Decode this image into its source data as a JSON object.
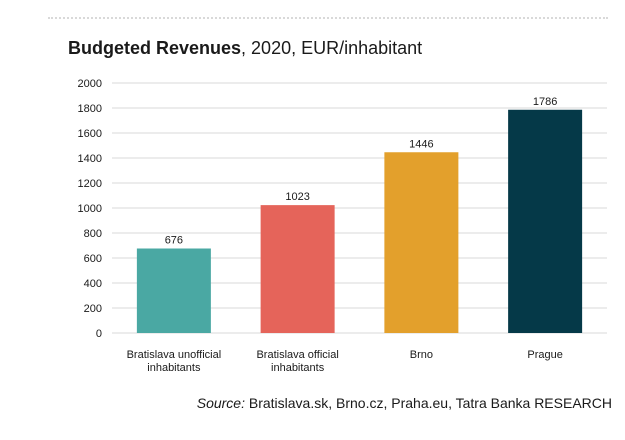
{
  "header": {
    "title_bold": "Budgeted Revenues",
    "title_rest": ", 2020, EUR/inhabitant"
  },
  "footer": {
    "source_label": "Source:",
    "source_text": " Bratislava.sk, Brno.cz, Praha.eu, Tatra Banka RESEARCH"
  },
  "chart_data": {
    "type": "bar",
    "title": "Budgeted Revenues, 2020, EUR/inhabitant",
    "xlabel": "",
    "ylabel": "",
    "ylim": [
      0,
      2000
    ],
    "yticks": [
      0,
      200,
      400,
      600,
      800,
      1000,
      1200,
      1400,
      1600,
      1800,
      2000
    ],
    "grid": true,
    "legend": "none",
    "categories": [
      [
        "Bratislava unofficial",
        "inhabitants"
      ],
      [
        "Bratislava official",
        "inhabitants"
      ],
      [
        "Brno"
      ],
      [
        "Prague"
      ]
    ],
    "values": [
      676,
      1023,
      1446,
      1786
    ],
    "data_labels": [
      "676",
      "1023",
      "1446",
      "1786"
    ],
    "colors": [
      "#4aa8a3",
      "#e5645a",
      "#e3a02c",
      "#053948"
    ]
  }
}
